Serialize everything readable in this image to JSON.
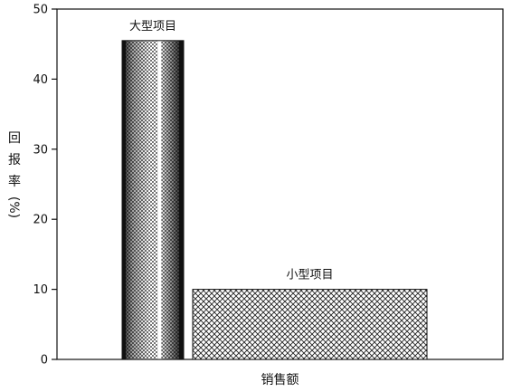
{
  "chart_data": {
    "type": "bar",
    "categories": [
      "大型项目",
      "小型项目"
    ],
    "values": [
      45.5,
      10
    ],
    "xlabel": "销售额",
    "ylabel": [
      "回",
      "报",
      "率",
      "(%)"
    ],
    "ylim": [
      0,
      50
    ],
    "yticks": [
      0,
      10,
      20,
      30,
      40,
      50
    ],
    "grid": false,
    "bar_styles": [
      "cylinder-stipple",
      "crosshatch"
    ],
    "colors": {
      "ink": "#111111",
      "background": "#ffffff"
    }
  }
}
